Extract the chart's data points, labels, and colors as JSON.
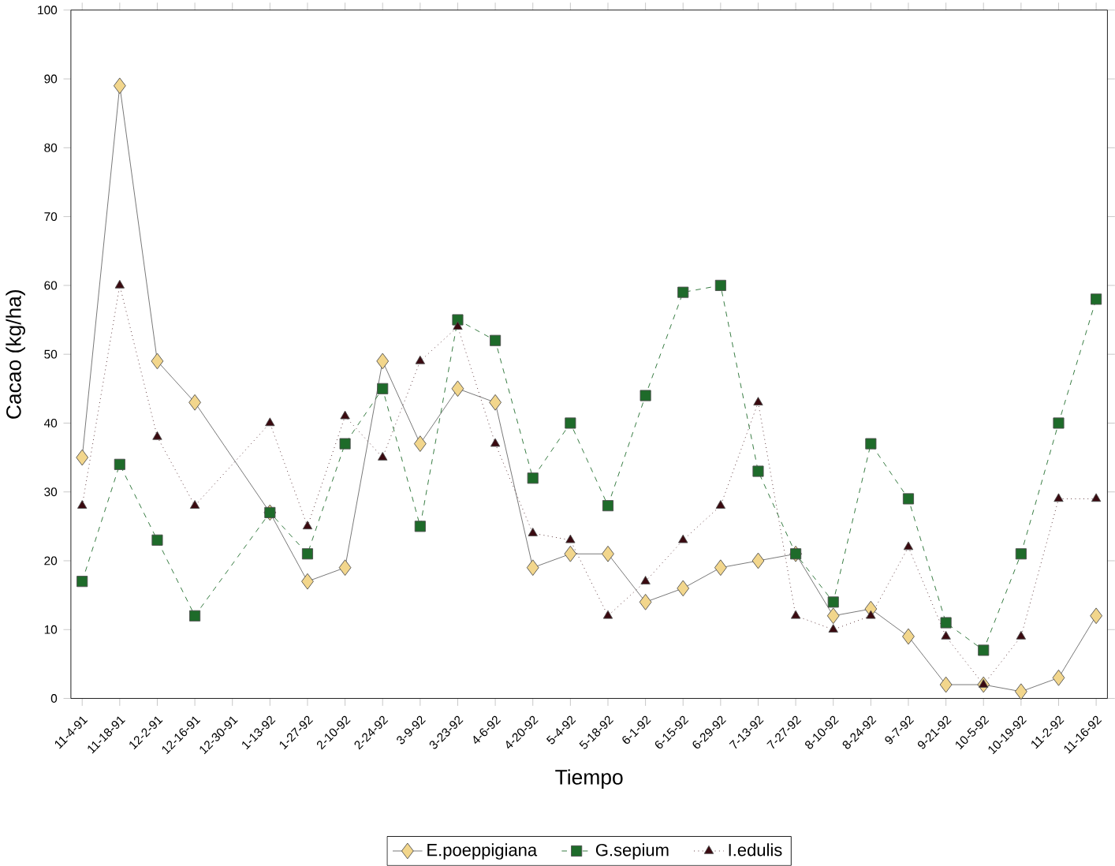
{
  "chart_data": {
    "type": "line",
    "xlabel": "Tiempo",
    "ylabel": "Cacao (kg/ha)",
    "categories": [
      "11-4-91",
      "11-18-91",
      "12-2-91",
      "12-16-91",
      "12-30-91",
      "1-13-92",
      "1-27-92",
      "2-10-92",
      "2-24-92",
      "3-9-92",
      "3-23-92",
      "4-6-92",
      "4-20-92",
      "5-4-92",
      "5-18-92",
      "6-1-92",
      "6-15-92",
      "6-29-92",
      "7-13-92",
      "7-27-92",
      "8-10-92",
      "8-24-92",
      "9-7-92",
      "9-21-92",
      "10-5-92",
      "10-19-92",
      "11-2-92",
      "11-16-92"
    ],
    "series": [
      {
        "name": "E.poeppigiana",
        "color": "#f2d68c",
        "marker": "diamond",
        "line_style": "solid",
        "values": [
          35,
          89,
          49,
          43,
          null,
          27,
          17,
          19,
          49,
          37,
          45,
          43,
          19,
          21,
          21,
          14,
          16,
          19,
          20,
          21,
          12,
          13,
          9,
          2,
          2,
          1,
          3,
          12
        ]
      },
      {
        "name": "G.sepium",
        "color": "#1e6b2a",
        "marker": "square",
        "line_style": "dashed",
        "values": [
          17,
          34,
          23,
          12,
          null,
          27,
          21,
          37,
          45,
          25,
          55,
          52,
          32,
          40,
          28,
          44,
          59,
          60,
          33,
          21,
          14,
          37,
          29,
          11,
          7,
          21,
          40,
          58
        ]
      },
      {
        "name": "I.edulis",
        "color": "#3a0a10",
        "marker": "triangle",
        "line_style": "dotted",
        "values": [
          28,
          60,
          38,
          28,
          null,
          40,
          25,
          41,
          35,
          49,
          54,
          37,
          24,
          23,
          12,
          17,
          23,
          28,
          43,
          12,
          10,
          12,
          22,
          9,
          2,
          9,
          29,
          29
        ]
      }
    ],
    "ylim": [
      0,
      100
    ],
    "yticks": [
      0,
      10,
      20,
      30,
      40,
      50,
      60,
      70,
      80,
      90,
      100
    ],
    "grid": false,
    "legend": "bottom"
  }
}
